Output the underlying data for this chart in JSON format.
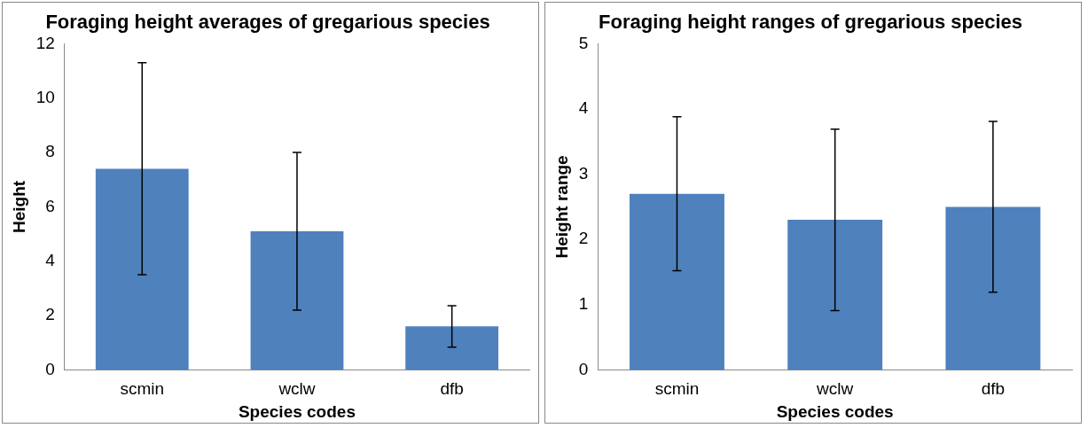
{
  "chart_data": [
    {
      "type": "bar",
      "title": "Foraging height averages of gregarious species",
      "xlabel": "Species codes",
      "ylabel": "Height",
      "categories": [
        "scmin",
        "wclw",
        "dfb"
      ],
      "values": [
        7.4,
        5.1,
        1.6
      ],
      "errors": [
        3.9,
        2.9,
        0.76
      ],
      "color": "#4f81bd",
      "ylim": [
        0,
        12
      ],
      "yticks": [
        0,
        2,
        4,
        6,
        8,
        10,
        12
      ],
      "grid": false,
      "legend": false
    },
    {
      "type": "bar",
      "title": "Foraging height ranges of gregarious species",
      "xlabel": "Species codes",
      "ylabel": "Height range",
      "categories": [
        "scmin",
        "wclw",
        "dfb"
      ],
      "values": [
        2.7,
        2.3,
        2.5
      ],
      "errors": [
        1.18,
        1.39,
        1.31
      ],
      "color": "#4f81bd",
      "ylim": [
        0,
        5
      ],
      "yticks": [
        0,
        1,
        2,
        3,
        4,
        5
      ],
      "grid": false,
      "legend": false
    }
  ]
}
